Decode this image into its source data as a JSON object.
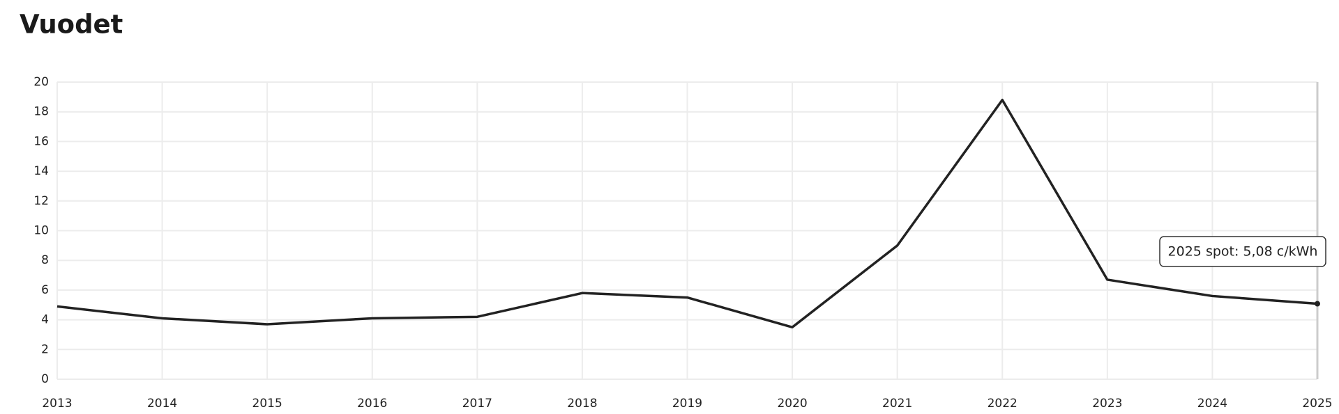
{
  "chart_data": {
    "type": "line",
    "title": "Vuodet",
    "categories": [
      "2013",
      "2014",
      "2015",
      "2016",
      "2017",
      "2018",
      "2019",
      "2020",
      "2021",
      "2022",
      "2023",
      "2024",
      "2025"
    ],
    "series": [
      {
        "name": "spot",
        "color": "#222222",
        "values": [
          4.9,
          4.1,
          3.7,
          4.1,
          4.2,
          5.8,
          5.5,
          3.5,
          9.0,
          18.8,
          6.7,
          5.6,
          5.08
        ]
      }
    ],
    "ylim": [
      0,
      20
    ],
    "yticks": [
      0,
      2,
      4,
      6,
      8,
      10,
      12,
      14,
      16,
      18,
      20
    ],
    "grid": true,
    "tooltip": "2025 spot: 5,08 c/kWh"
  }
}
